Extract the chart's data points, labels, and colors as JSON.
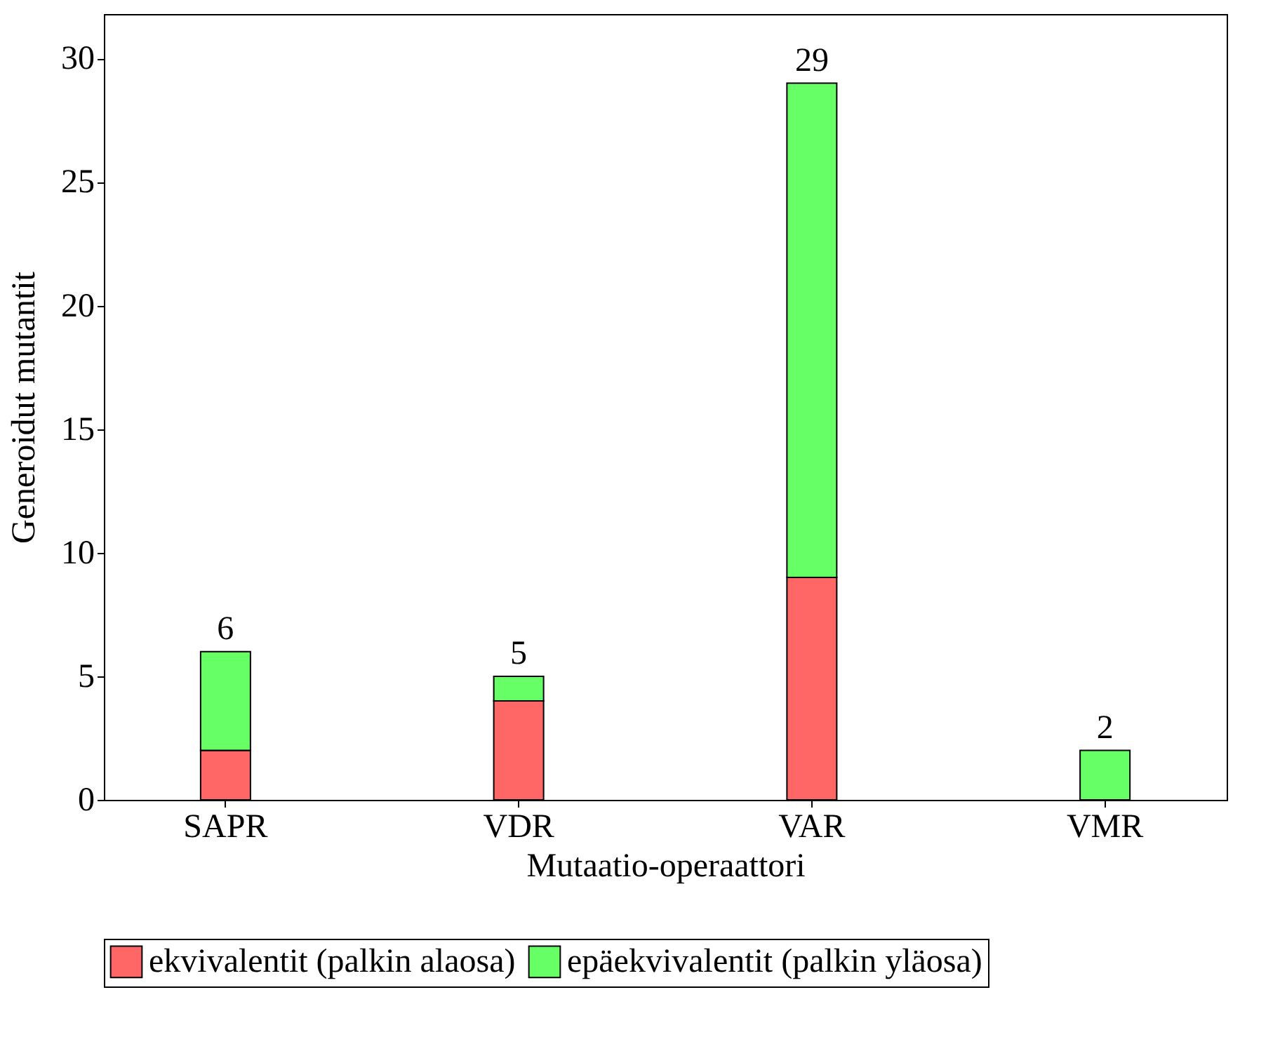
{
  "chart_data": {
    "type": "bar",
    "stacked": true,
    "xlabel": "Mutaatio-operaattori",
    "ylabel": "Generoidut mutantit",
    "categories": [
      "SAPR",
      "VDR",
      "VAR",
      "VMR"
    ],
    "series": [
      {
        "name": "ekvivalentit (palkin alaosa)",
        "color": "#ff6666",
        "values": [
          2,
          4,
          9,
          0
        ]
      },
      {
        "name": "epäekvivalentit (palkin yläosa)",
        "color": "#66ff66",
        "values": [
          4,
          1,
          20,
          2
        ]
      }
    ],
    "totals": [
      "6",
      "5",
      "29",
      "2"
    ],
    "ylim": [
      0,
      31.8
    ],
    "yticks": [
      0,
      5,
      10,
      15,
      20,
      25,
      30
    ],
    "grid": false,
    "legend": "bottom"
  }
}
